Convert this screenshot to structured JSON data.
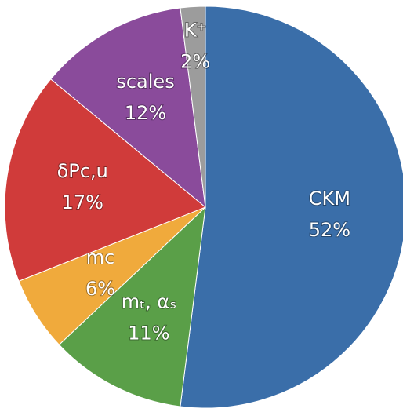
{
  "chart_data": {
    "type": "pie",
    "categories": [
      "CKM",
      "mₜ, αₛ",
      "mc",
      "δPc,u",
      "scales",
      "K⁺"
    ],
    "values": [
      52,
      11,
      6,
      17,
      12,
      2
    ],
    "value_labels": [
      "52%",
      "11%",
      "6%",
      "17%",
      "12%",
      "2%"
    ],
    "colors": [
      "#3a6ea9",
      "#5a9f48",
      "#f0aa3c",
      "#d03b3a",
      "#8a4b9b",
      "#9c9c9c"
    ]
  }
}
